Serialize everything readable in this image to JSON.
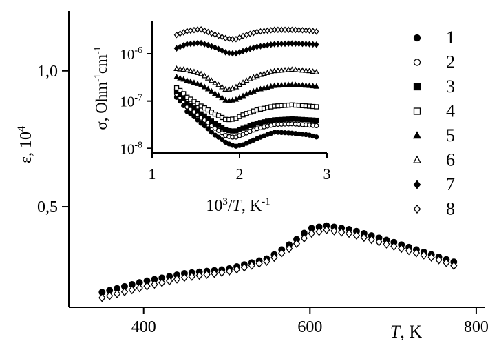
{
  "chart_data": [
    {
      "type": "scatter",
      "xaxis": {
        "label_italic": "T",
        "label_rest": ", K",
        "ticks": [
          400,
          600,
          800
        ],
        "tick_labels": [
          "400",
          "600",
          "800"
        ],
        "range": [
          310,
          810
        ]
      },
      "yaxis": {
        "label_main": "ε, 10",
        "label_sup": "4",
        "ticks": [
          0.5,
          1.0
        ],
        "tick_labels": [
          "0,5",
          "1,0"
        ],
        "range": [
          0.13,
          1.22
        ]
      },
      "legend": {
        "placement": "right",
        "entries": [
          {
            "label": "1",
            "marker": "circle",
            "filled": true
          },
          {
            "label": "2",
            "marker": "circle",
            "filled": false
          },
          {
            "label": "3",
            "marker": "square",
            "filled": true
          },
          {
            "label": "4",
            "marker": "square",
            "filled": false
          },
          {
            "label": "5",
            "marker": "triangle",
            "filled": true
          },
          {
            "label": "6",
            "marker": "triangle",
            "filled": false
          },
          {
            "label": "7",
            "marker": "diamond",
            "filled": true
          },
          {
            "label": "8",
            "marker": "diamond",
            "filled": false
          }
        ]
      },
      "series": [
        {
          "name": "1",
          "marker": "circle",
          "filled": true,
          "x": [
            350,
            400,
            450,
            500,
            550,
            580,
            600,
            620,
            650,
            700,
            750,
            780
          ],
          "y": [
            0.185,
            0.225,
            0.255,
            0.27,
            0.31,
            0.37,
            0.42,
            0.43,
            0.415,
            0.37,
            0.32,
            0.29
          ]
        },
        {
          "name": "8",
          "marker": "diamond",
          "filled": false,
          "x": [
            350,
            400,
            450,
            500,
            550,
            580,
            600,
            620,
            650,
            700,
            750,
            780
          ],
          "y": [
            0.165,
            0.205,
            0.24,
            0.26,
            0.3,
            0.355,
            0.4,
            0.415,
            0.4,
            0.355,
            0.31,
            0.275
          ]
        }
      ]
    },
    {
      "type": "scatter",
      "inset": true,
      "xaxis": {
        "label_pre": "10",
        "label_sup": "3",
        "label_italic": "T",
        "label_unit": ", K",
        "label_unit_sup": "-1",
        "ticks": [
          1,
          2,
          3
        ],
        "tick_labels": [
          "1",
          "2",
          "3"
        ],
        "range": [
          1,
          3
        ]
      },
      "yaxis": {
        "label_a": "σ, Ohm",
        "label_sup_a": "-1",
        "label_b": "cm",
        "label_sup_b": "-1",
        "scale": "log",
        "ticks": [
          1e-08,
          1e-07,
          1e-06
        ],
        "tick_bases": [
          "10",
          "10",
          "10"
        ],
        "tick_exps": [
          "-8",
          "-7",
          "-6"
        ],
        "range": [
          8e-09,
          5e-06
        ]
      },
      "series": [
        {
          "name": "1",
          "marker": "circle",
          "filled": true,
          "x": [
            1.28,
            1.4,
            1.55,
            1.7,
            1.85,
            1.95,
            2.05,
            2.2,
            2.4,
            2.6,
            2.8,
            2.9
          ],
          "y": [
            1.2e-07,
            6e-08,
            3.5e-08,
            2e-08,
            1.3e-08,
            1.1e-08,
            1.2e-08,
            1.6e-08,
            2.2e-08,
            2.1e-08,
            1.9e-08,
            1.7e-08
          ]
        },
        {
          "name": "2",
          "marker": "circle",
          "filled": false,
          "x": [
            1.28,
            1.4,
            1.55,
            1.7,
            1.85,
            1.95,
            2.05,
            2.2,
            2.4,
            2.6,
            2.8,
            2.9
          ],
          "y": [
            1.4e-07,
            7.5e-08,
            4.5e-08,
            2.8e-08,
            1.8e-08,
            1.7e-08,
            2e-08,
            2.6e-08,
            3.2e-08,
            3.3e-08,
            3.1e-08,
            3e-08
          ]
        },
        {
          "name": "3",
          "marker": "square",
          "filled": true,
          "x": [
            1.28,
            1.4,
            1.55,
            1.7,
            1.85,
            1.95,
            2.05,
            2.2,
            2.4,
            2.6,
            2.8,
            2.9
          ],
          "y": [
            1.6e-07,
            9e-08,
            5.5e-08,
            3.5e-08,
            2.4e-08,
            2.3e-08,
            2.7e-08,
            3.4e-08,
            4e-08,
            4.2e-08,
            4e-08,
            3.9e-08
          ]
        },
        {
          "name": "4",
          "marker": "square",
          "filled": false,
          "x": [
            1.28,
            1.4,
            1.55,
            1.7,
            1.85,
            1.95,
            2.05,
            2.2,
            2.4,
            2.6,
            2.8,
            2.9
          ],
          "y": [
            1.9e-07,
            1.2e-07,
            8e-08,
            5.5e-08,
            4e-08,
            4.2e-08,
            5.2e-08,
            6.5e-08,
            7.8e-08,
            8.3e-08,
            7.8e-08,
            7.5e-08
          ]
        },
        {
          "name": "5",
          "marker": "triangle",
          "filled": true,
          "x": [
            1.28,
            1.4,
            1.55,
            1.7,
            1.85,
            1.95,
            2.05,
            2.2,
            2.4,
            2.6,
            2.8,
            2.9
          ],
          "y": [
            3.2e-07,
            2.7e-07,
            2.2e-07,
            1.5e-07,
            1e-07,
            1.05e-07,
            1.3e-07,
            1.7e-07,
            2.1e-07,
            2.2e-07,
            2.1e-07,
            2e-07
          ]
        },
        {
          "name": "6",
          "marker": "triangle",
          "filled": false,
          "x": [
            1.28,
            1.4,
            1.55,
            1.7,
            1.85,
            1.95,
            2.05,
            2.2,
            2.4,
            2.6,
            2.8,
            2.9
          ],
          "y": [
            4.8e-07,
            4.5e-07,
            3.8e-07,
            2.5e-07,
            1.7e-07,
            1.9e-07,
            2.5e-07,
            3.4e-07,
            4.3e-07,
            4.6e-07,
            4.3e-07,
            4e-07
          ]
        },
        {
          "name": "7",
          "marker": "diamond",
          "filled": true,
          "x": [
            1.28,
            1.4,
            1.55,
            1.7,
            1.85,
            1.95,
            2.05,
            2.2,
            2.4,
            2.6,
            2.8,
            2.9
          ],
          "y": [
            1.3e-06,
            1.6e-06,
            1.7e-06,
            1.4e-06,
            1.05e-06,
            1e-06,
            1.15e-06,
            1.4e-06,
            1.6e-06,
            1.65e-06,
            1.6e-06,
            1.55e-06
          ]
        },
        {
          "name": "8",
          "marker": "diamond",
          "filled": false,
          "x": [
            1.28,
            1.4,
            1.55,
            1.7,
            1.85,
            1.95,
            2.05,
            2.2,
            2.4,
            2.6,
            2.8,
            2.9
          ],
          "y": [
            2.5e-06,
            3e-06,
            3.3e-06,
            2.6e-06,
            2.1e-06,
            2e-06,
            2.4e-06,
            2.9e-06,
            3.2e-06,
            3.2e-06,
            3.1e-06,
            2.9e-06
          ]
        }
      ]
    }
  ]
}
